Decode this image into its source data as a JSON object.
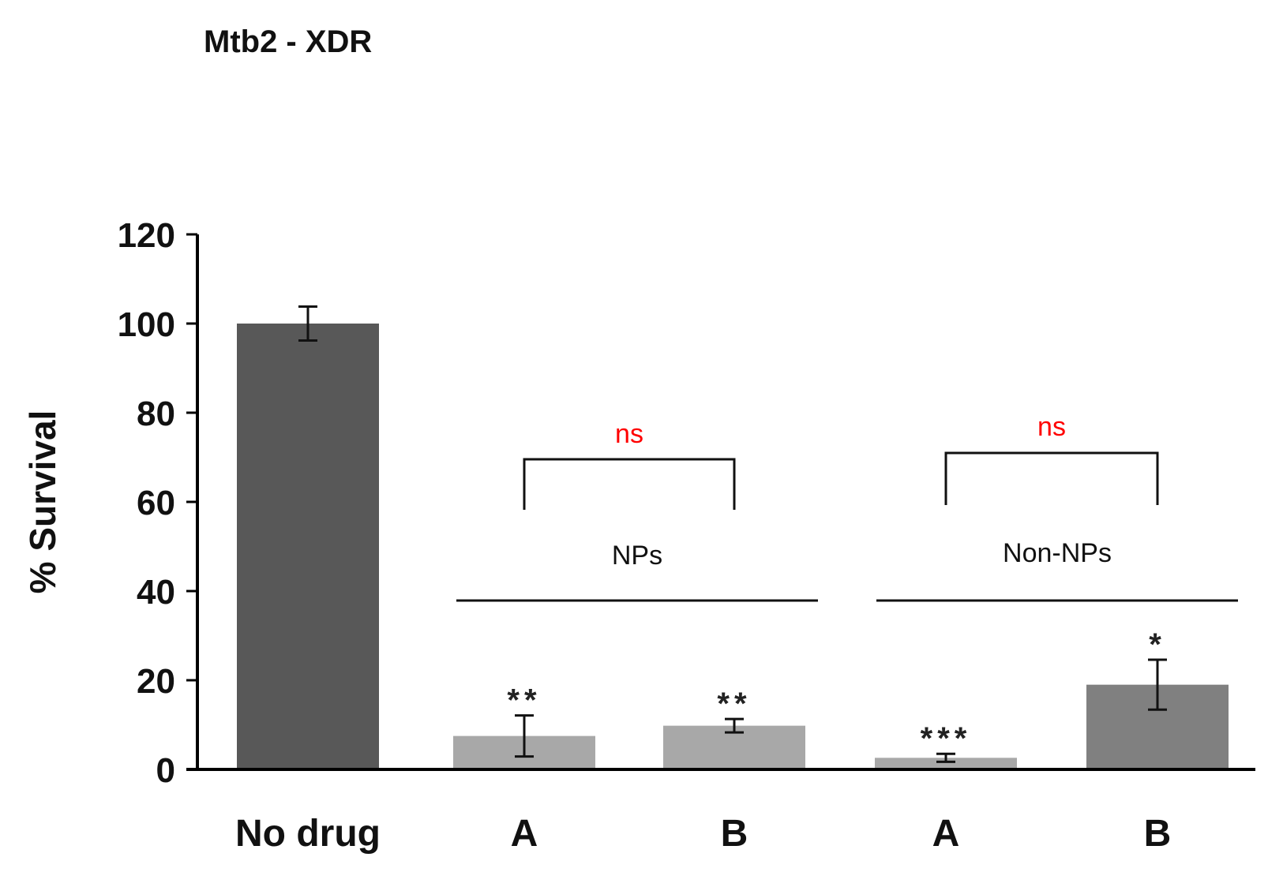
{
  "chart_data": {
    "type": "bar",
    "title": "Mtb2 - XDR",
    "xlabel": "",
    "ylabel": "% Survival",
    "ylim": [
      0,
      120
    ],
    "yticks": [
      0,
      20,
      40,
      60,
      80,
      100,
      120
    ],
    "categories": [
      "No drug",
      "A",
      "B",
      "A",
      "B"
    ],
    "values": [
      100,
      7.5,
      9.8,
      2.6,
      19.0
    ],
    "errors": [
      3.8,
      4.6,
      1.5,
      0.9,
      5.6
    ],
    "significance": [
      "",
      "**",
      "**",
      "***",
      "*"
    ],
    "bar_colors": [
      "#585858",
      "#a8a8a8",
      "#a8a8a8",
      "#a8a8a8",
      "#808080"
    ],
    "groups": [
      {
        "label": "NPs",
        "bars": [
          1,
          2
        ],
        "comparison": "ns"
      },
      {
        "label": "Non-NPs",
        "bars": [
          3,
          4
        ],
        "comparison": "ns"
      }
    ],
    "comparison_color": "#ff0000",
    "grid": false,
    "legend": "none"
  }
}
